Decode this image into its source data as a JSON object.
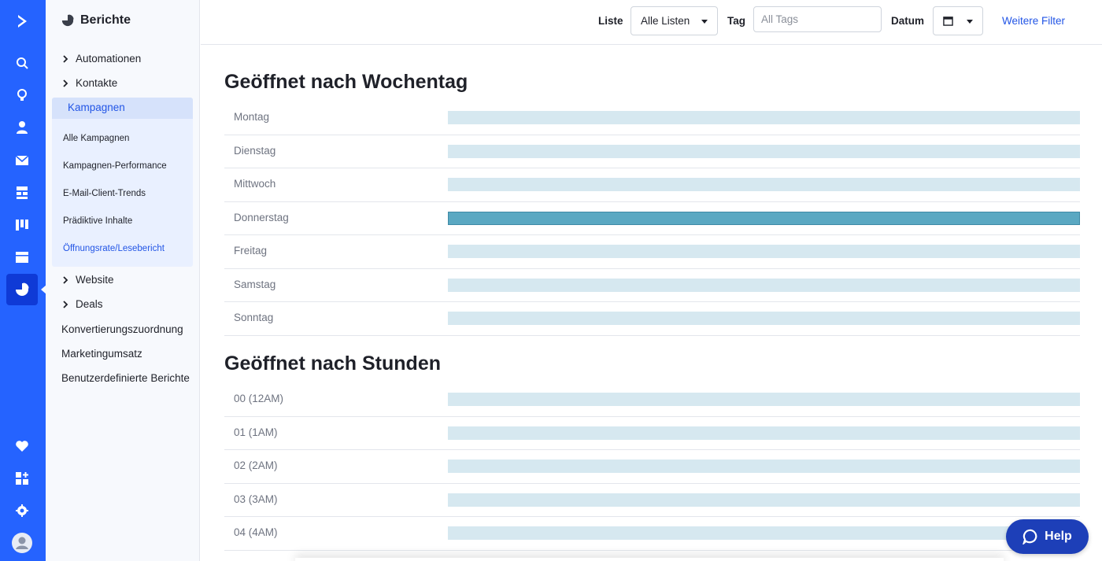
{
  "nav": {
    "title": "Berichte",
    "items": [
      {
        "label": "Automationen"
      },
      {
        "label": "Kontakte"
      },
      {
        "label": "Kampagnen"
      },
      {
        "label": "Website"
      },
      {
        "label": "Deals"
      }
    ],
    "campaign_sub": [
      "Alle Kampagnen",
      "Kampagnen-Performance",
      "E-Mail-Client-Trends",
      "Prädiktive Inhalte",
      "Öffnungsrate/Lesebericht"
    ],
    "plain": [
      "Konvertierungszuordnung",
      "Marketingumsatz",
      "Benutzerdefinierte Berichte"
    ]
  },
  "topbar": {
    "list_label": "Liste",
    "list_value": "Alle Listen",
    "tag_label": "Tag",
    "tag_placeholder": "All Tags",
    "date_label": "Datum",
    "more_filters": "Weitere Filter"
  },
  "colors": {
    "rail": "#2563ff",
    "accent": "#2255e6",
    "bar_light": "#d6e8f0",
    "bar_highlight": "#5aa8c2"
  },
  "sections": {
    "weekday_title": "Geöffnet nach Wochentag",
    "hours_title": "Geöffnet nach Stunden"
  },
  "chart_data": [
    {
      "type": "bar",
      "title": "Geöffnet nach Wochentag",
      "categories": [
        "Montag",
        "Dienstag",
        "Mittwoch",
        "Donnerstag",
        "Freitag",
        "Samstag",
        "Sonntag"
      ],
      "values": [
        0,
        0,
        0,
        1,
        0,
        0,
        0
      ],
      "highlight": "Donnerstag"
    },
    {
      "type": "bar",
      "title": "Geöffnet nach Stunden",
      "categories": [
        "00 (12AM)",
        "01 (1AM)",
        "02 (2AM)",
        "03 (3AM)",
        "04 (4AM)"
      ],
      "values": [
        0,
        0,
        0,
        0,
        0
      ]
    }
  ],
  "help": {
    "label": "Help"
  }
}
